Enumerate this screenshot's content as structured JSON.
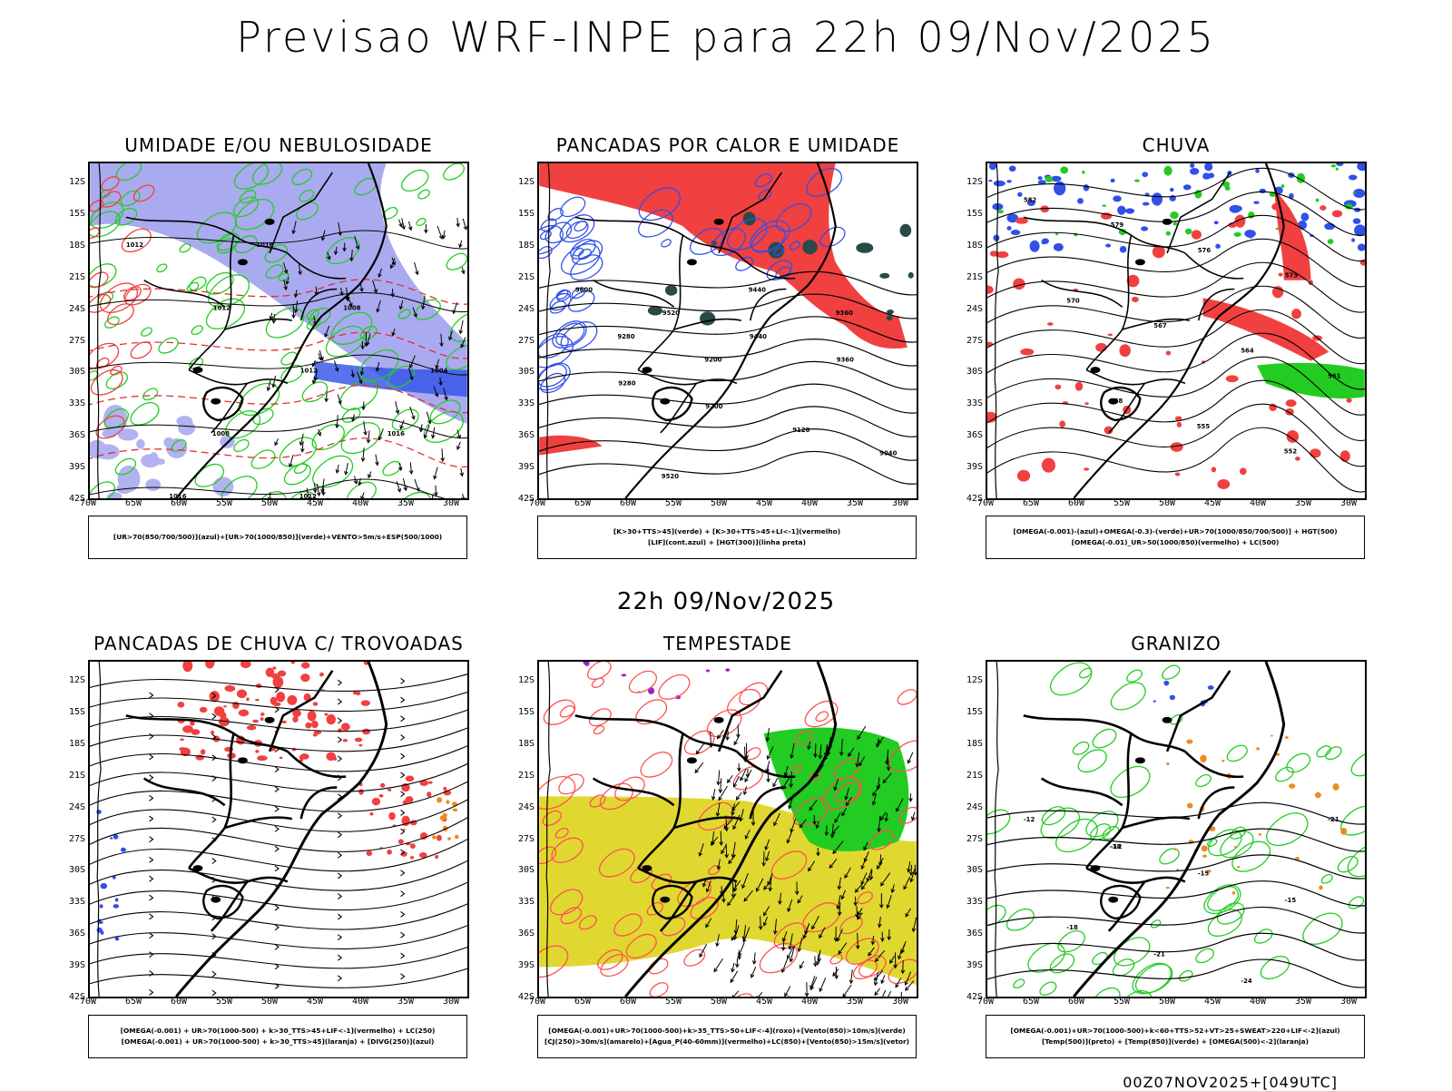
{
  "main_title": "Previsao WRF-INPE  para 22h 09/Nov/2025",
  "mid_title": "22h 09/Nov/2025",
  "footer": "00Z07NOV2025+[049UTC]",
  "lat_labels": [
    "12S",
    "15S",
    "18S",
    "21S",
    "24S",
    "27S",
    "30S",
    "33S",
    "36S",
    "39S",
    "42S"
  ],
  "lon_labels": [
    "70W",
    "65W",
    "60W",
    "55W",
    "50W",
    "45W",
    "40W",
    "35W",
    "30W"
  ],
  "colors": {
    "blue": "#3050e8",
    "green": "#22cc22",
    "red": "#f04040",
    "lavender": "#aaaaf0",
    "yellow": "#e0d830",
    "dark_teal": "#2a4a48",
    "orange": "#f08a20",
    "purple": "#a020c0"
  },
  "panels": [
    {
      "title": "UMIDADE E/OU NEBULOSIDADE",
      "legend": [
        "[UR>70(850/700/500)](azul)+[UR>70(1000/850)](verde)+VENTO>5m/s+ESP(500/1000)"
      ],
      "contour_labels": [
        "1012",
        "1012",
        "1012",
        "1016",
        "1016",
        "1016",
        "1008",
        "1004",
        "1008",
        "1012",
        "576",
        "576",
        "564",
        "558",
        "552",
        "546",
        "540"
      ]
    },
    {
      "title": "PANCADAS POR CALOR E UMIDADE",
      "legend": [
        "[K>30+TTS>45](verde) + [K>30+TTS>45+LI<-1](vermelho)",
        "[LIF](cont.azul) + [HGT(300)](linha preta)"
      ],
      "contour_labels": [
        "9600",
        "9520",
        "9440",
        "9360",
        "9280",
        "9200",
        "9120",
        "9040",
        "9520",
        "9440",
        "9360",
        "9280",
        "9200"
      ]
    },
    {
      "title": "CHUVA",
      "legend": [
        "[OMEGA(-0.001)-(azul)+OMEGA(-0.3)-(verde)+UR>70(1000/850/700/500)] + HGT(500)",
        "[OMEGA(-0.01)_UR>50(1000/850)(vermelho) + LC(500)"
      ],
      "contour_labels": [
        "582",
        "579",
        "576",
        "573",
        "570",
        "567",
        "564",
        "561",
        "558",
        "555",
        "552"
      ]
    },
    {
      "title": "PANCADAS DE CHUVA C/ TROVOADAS",
      "legend": [
        "[OMEGA(-0.001) + UR>70(1000-500) + k>30_TTS>45+LIF<-1](vermelho) + LC(250)",
        "[OMEGA(-0.001) + UR>70(1000-500) + k>30_TTS>45](laranja) + [DIVG(250)](azul)"
      ],
      "contour_labels": []
    },
    {
      "title": "TEMPESTADE",
      "legend": [
        "[OMEGA(-0.001)+UR>70(1000-500)+k>35_TTS>50+LIF<-4](roxo)+[Vento(850)>10m/s](verde)",
        "[CJ(250)>30m/s](amarelo)+[Agua_P(40-60mm)](vermelho)+LC(850)+[Vento(850)>15m/s](vetor)"
      ],
      "contour_labels": []
    },
    {
      "title": "GRANIZO",
      "legend": [
        "[OMEGA(-0.001)+UR>70(1000-500)+k<60+TTS>52+VT>25+SWEAT>220+LIF<-2](azul)",
        "[Temp(500)](preto) + [Temp(850)](verde) + [OMEGA(500)<-2](laranja)"
      ],
      "contour_labels": [
        "-12",
        "-12",
        "-15",
        "-15",
        "-18",
        "-21",
        "-24",
        "-21",
        "-18"
      ]
    }
  ]
}
